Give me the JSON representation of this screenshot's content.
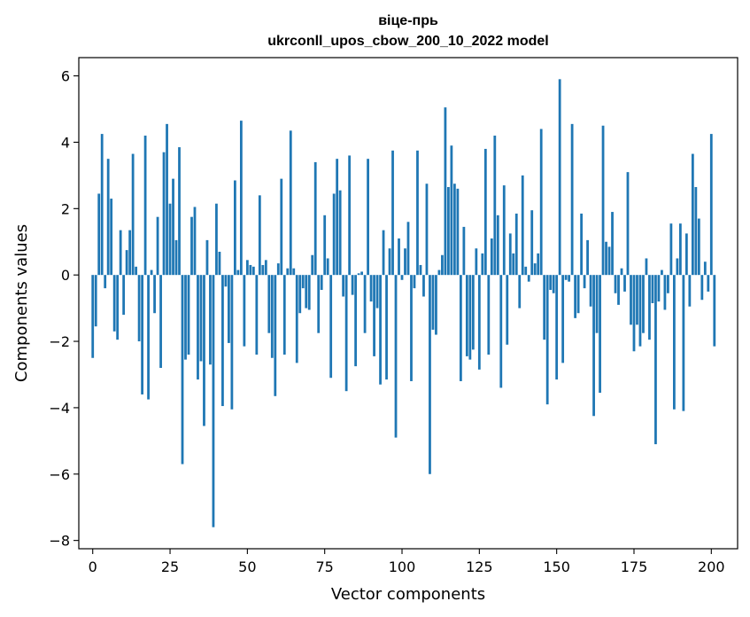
{
  "chart_data": {
    "type": "bar",
    "title_line1": "віце-прь",
    "title_line2": "ukrconll_upos_cbow_200_10_2022 model",
    "xlabel": "Vector components",
    "ylabel": "Components values",
    "xlim": [
      -4.5,
      208.5
    ],
    "ylim": [
      -8.25,
      6.55
    ],
    "xticks": [
      0,
      25,
      50,
      75,
      100,
      125,
      150,
      175,
      200
    ],
    "yticks": [
      -8,
      -6,
      -4,
      -2,
      0,
      2,
      4,
      6
    ],
    "xtick_labels": [
      "0",
      "25",
      "50",
      "75",
      "100",
      "125",
      "150",
      "175",
      "200"
    ],
    "ytick_labels": [
      "−8",
      "−6",
      "−4",
      "−2",
      "0",
      "2",
      "4",
      "6"
    ],
    "bar_color": "#1f77b4",
    "grid": false,
    "legend": "none",
    "values": [
      -2.5,
      -1.55,
      2.45,
      4.25,
      -0.4,
      3.5,
      2.3,
      -1.7,
      -1.95,
      1.35,
      -1.2,
      0.75,
      1.35,
      3.65,
      0.25,
      -2.0,
      -3.6,
      4.2,
      -3.75,
      0.15,
      -1.15,
      1.75,
      -2.8,
      3.7,
      4.55,
      2.15,
      2.9,
      1.05,
      3.85,
      -5.7,
      -2.55,
      -2.4,
      1.75,
      2.05,
      -3.15,
      -2.6,
      -4.55,
      1.05,
      -2.7,
      -7.6,
      2.15,
      0.7,
      -3.95,
      -0.35,
      -2.05,
      -4.05,
      2.85,
      0.15,
      4.65,
      -2.15,
      0.45,
      0.3,
      0.25,
      -2.4,
      2.4,
      0.3,
      0.45,
      -1.75,
      -2.5,
      -3.65,
      0.35,
      2.9,
      -2.4,
      0.2,
      4.35,
      0.2,
      -2.65,
      -1.15,
      -0.4,
      -1.0,
      -1.05,
      0.6,
      3.4,
      -1.75,
      -0.45,
      1.8,
      0.5,
      -3.1,
      2.45,
      3.5,
      2.55,
      -0.65,
      -3.5,
      3.6,
      -0.6,
      -2.75,
      0.05,
      0.1,
      -1.75,
      3.5,
      -0.8,
      -2.45,
      -1.0,
      -3.3,
      1.35,
      -3.15,
      0.8,
      3.75,
      -4.9,
      1.1,
      -0.15,
      0.8,
      1.6,
      -3.2,
      -0.4,
      3.75,
      0.3,
      -0.65,
      2.75,
      -6.0,
      -1.65,
      -1.8,
      0.15,
      0.6,
      5.05,
      2.65,
      3.9,
      2.75,
      2.6,
      -3.2,
      1.45,
      -2.45,
      -2.55,
      -2.25,
      0.8,
      -2.85,
      0.65,
      3.8,
      -2.4,
      1.1,
      4.2,
      1.8,
      -3.4,
      2.7,
      -2.1,
      1.25,
      0.65,
      1.85,
      -1.0,
      3.0,
      0.25,
      -0.2,
      1.95,
      0.35,
      0.65,
      4.4,
      -1.95,
      -3.9,
      -0.45,
      -0.55,
      -3.15,
      5.9,
      -2.65,
      -0.15,
      -0.2,
      4.55,
      -1.3,
      -1.15,
      1.85,
      -0.4,
      1.05,
      -0.95,
      -4.25,
      -1.75,
      -3.55,
      4.5,
      1.0,
      0.85,
      1.9,
      -0.55,
      -0.9,
      0.2,
      -0.5,
      3.1,
      -1.5,
      -2.3,
      -1.5,
      -2.15,
      -1.75,
      0.5,
      -1.95,
      -0.85,
      -5.1,
      -0.8,
      0.15,
      -1.05,
      -0.55,
      1.55,
      -4.05,
      0.5,
      1.55,
      -4.1,
      1.25,
      -0.95,
      3.65,
      2.65,
      1.7,
      -0.75,
      0.4,
      -0.5,
      4.25,
      -2.15
    ]
  }
}
